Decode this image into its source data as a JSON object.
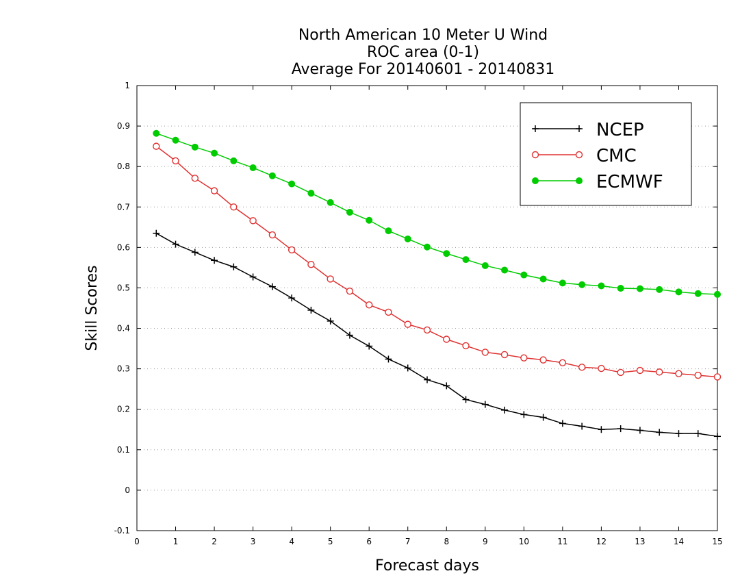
{
  "chart_data": {
    "type": "line",
    "title_lines": [
      "North American 10 Meter U Wind",
      "ROC area (0-1)",
      "Average For 20140601 - 20140831"
    ],
    "xlabel": "Forecast days",
    "ylabel": "Skill Scores",
    "xlim": [
      0,
      15
    ],
    "ylim": [
      -0.1,
      1
    ],
    "x_ticks": [
      "0",
      "1",
      "2",
      "3",
      "4",
      "5",
      "6",
      "7",
      "8",
      "9",
      "10",
      "11",
      "12",
      "13",
      "14",
      "15"
    ],
    "y_ticks": [
      "-0.1",
      "0",
      "0.1",
      "0.2",
      "0.3",
      "0.4",
      "0.5",
      "0.6",
      "0.7",
      "0.8",
      "0.9",
      "1"
    ],
    "grid": "horizontal dotted",
    "legend_position": "top-right",
    "x": [
      0.5,
      1,
      1.5,
      2,
      2.5,
      3,
      3.5,
      4,
      4.5,
      5,
      5.5,
      6,
      6.5,
      7,
      7.5,
      8,
      8.5,
      9,
      9.5,
      10,
      10.5,
      11,
      11.5,
      12,
      12.5,
      13,
      13.5,
      14,
      14.5,
      15
    ],
    "series": [
      {
        "name": "NCEP",
        "color": "#000000",
        "marker": "plus",
        "values": [
          0.635,
          0.608,
          0.588,
          0.568,
          0.552,
          0.527,
          0.503,
          0.475,
          0.445,
          0.418,
          0.383,
          0.356,
          0.324,
          0.302,
          0.273,
          0.258,
          0.224,
          0.212,
          0.198,
          0.187,
          0.18,
          0.165,
          0.158,
          0.15,
          0.152,
          0.148,
          0.143,
          0.14,
          0.14,
          0.133
        ]
      },
      {
        "name": "CMC",
        "color": "#e03030",
        "marker": "open-circle",
        "values": [
          0.85,
          0.814,
          0.771,
          0.74,
          0.7,
          0.666,
          0.631,
          0.594,
          0.558,
          0.522,
          0.492,
          0.458,
          0.44,
          0.41,
          0.396,
          0.373,
          0.357,
          0.341,
          0.335,
          0.327,
          0.322,
          0.315,
          0.304,
          0.301,
          0.291,
          0.296,
          0.292,
          0.288,
          0.284,
          0.28
        ]
      },
      {
        "name": "ECMWF",
        "color": "#00cc00",
        "marker": "filled-circle",
        "values": [
          0.882,
          0.865,
          0.848,
          0.833,
          0.814,
          0.797,
          0.777,
          0.757,
          0.734,
          0.711,
          0.687,
          0.667,
          0.641,
          0.621,
          0.601,
          0.585,
          0.57,
          0.555,
          0.544,
          0.532,
          0.522,
          0.512,
          0.508,
          0.505,
          0.499,
          0.498,
          0.496,
          0.49,
          0.486,
          0.484
        ]
      }
    ]
  }
}
